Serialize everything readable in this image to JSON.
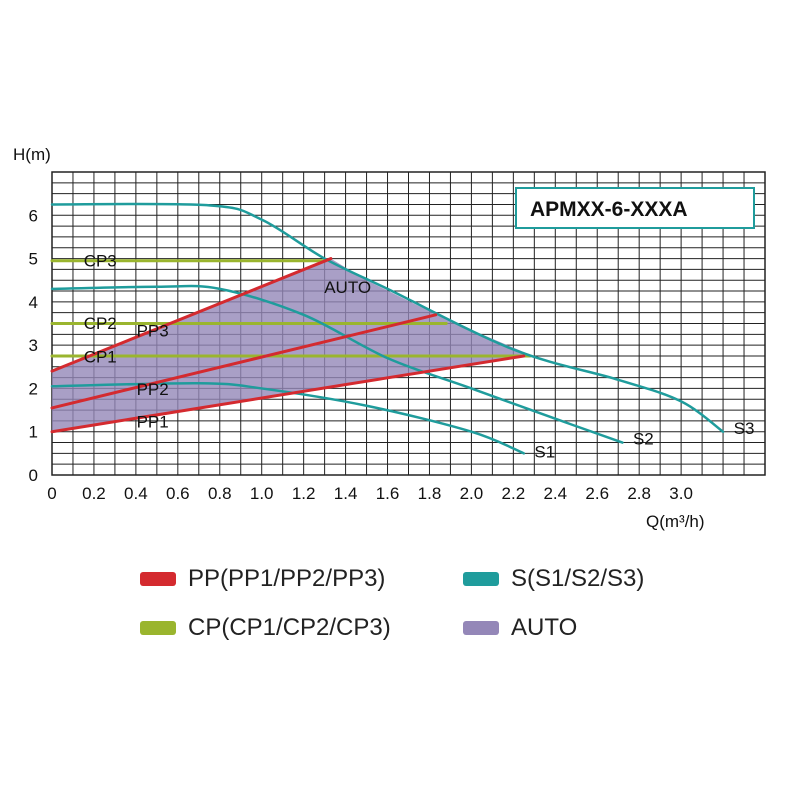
{
  "chart_data": {
    "type": "line",
    "model": "APMXX-6-XXXA",
    "ylabel": "H(m)",
    "xlabel": "Q(m³/h)",
    "xlim": [
      0,
      3.4
    ],
    "ylim": [
      0,
      7
    ],
    "x_ticks": [
      "0",
      "0.2",
      "0.4",
      "0.6",
      "0.8",
      "1.0",
      "1.2",
      "1.4",
      "1.6",
      "1.8",
      "2.0",
      "2.2",
      "2.4",
      "2.6",
      "2.8",
      "3.0"
    ],
    "x_tick_values": [
      0,
      0.2,
      0.4,
      0.6,
      0.8,
      1.0,
      1.2,
      1.4,
      1.6,
      1.8,
      2.0,
      2.2,
      2.4,
      2.6,
      2.8,
      3.0
    ],
    "y_ticks": [
      "0",
      "1",
      "2",
      "3",
      "4",
      "5",
      "6"
    ],
    "y_tick_values": [
      0,
      1,
      2,
      3,
      4,
      5,
      6
    ],
    "grid": true,
    "series": [
      {
        "name": "S1",
        "group": "S",
        "points": [
          [
            0,
            2.05
          ],
          [
            0.7,
            2.12
          ],
          [
            1.0,
            2.0
          ],
          [
            1.5,
            1.6
          ],
          [
            2.0,
            1.0
          ],
          [
            2.25,
            0.5
          ]
        ]
      },
      {
        "name": "S2",
        "group": "S",
        "points": [
          [
            0,
            4.3
          ],
          [
            0.5,
            4.35
          ],
          [
            0.8,
            4.3
          ],
          [
            1.2,
            3.7
          ],
          [
            1.6,
            2.7
          ],
          [
            2.0,
            2.0
          ],
          [
            2.4,
            1.3
          ],
          [
            2.72,
            0.75
          ]
        ]
      },
      {
        "name": "S3",
        "group": "S",
        "points": [
          [
            0,
            6.25
          ],
          [
            0.75,
            6.23
          ],
          [
            1.0,
            5.9
          ],
          [
            1.3,
            5.0
          ],
          [
            1.6,
            4.3
          ],
          [
            2.2,
            2.9
          ],
          [
            2.7,
            2.2
          ],
          [
            3.0,
            1.7
          ],
          [
            3.2,
            1.0
          ]
        ]
      },
      {
        "name": "PP1",
        "group": "PP",
        "points": [
          [
            0,
            1.0
          ],
          [
            2.25,
            2.75
          ]
        ]
      },
      {
        "name": "PP2",
        "group": "PP",
        "points": [
          [
            0,
            1.55
          ],
          [
            1.83,
            3.7
          ]
        ]
      },
      {
        "name": "PP3",
        "group": "PP",
        "points": [
          [
            0,
            2.4
          ],
          [
            1.33,
            5.0
          ]
        ]
      },
      {
        "name": "CP1",
        "group": "CP",
        "points": [
          [
            0,
            2.75
          ],
          [
            2.28,
            2.75
          ]
        ]
      },
      {
        "name": "CP2",
        "group": "CP",
        "points": [
          [
            0,
            3.5
          ],
          [
            1.88,
            3.5
          ]
        ]
      },
      {
        "name": "CP3",
        "group": "CP",
        "points": [
          [
            0,
            4.95
          ],
          [
            1.3,
            4.95
          ]
        ]
      }
    ],
    "auto_region": {
      "name": "AUTO",
      "points": [
        [
          0,
          1.0
        ],
        [
          0,
          2.4
        ],
        [
          1.33,
          5.0
        ],
        [
          1.5,
          4.5
        ],
        [
          1.75,
          3.9
        ],
        [
          2.0,
          3.35
        ],
        [
          2.28,
          2.78
        ],
        [
          2.25,
          2.75
        ]
      ]
    },
    "curve_labels": [
      {
        "text": "CP3",
        "at": [
          0.23,
          4.82
        ]
      },
      {
        "text": "CP2",
        "at": [
          0.23,
          3.37
        ]
      },
      {
        "text": "PP3",
        "at": [
          0.48,
          3.2
        ]
      },
      {
        "text": "CP1",
        "at": [
          0.23,
          2.6
        ]
      },
      {
        "text": "PP2",
        "at": [
          0.48,
          1.85
        ]
      },
      {
        "text": "PP1",
        "at": [
          0.48,
          1.1
        ]
      },
      {
        "text": "AUTO",
        "at": [
          1.41,
          4.2
        ]
      },
      {
        "text": "S1",
        "at": [
          2.35,
          0.4
        ]
      },
      {
        "text": "S2",
        "at": [
          2.82,
          0.7
        ]
      },
      {
        "text": "S3",
        "at": [
          3.3,
          0.95
        ]
      }
    ],
    "legend": [
      {
        "label": "PP(PP1/PP2/PP3)",
        "color": "#d42a2f"
      },
      {
        "label": "S(S1/S2/S3)",
        "color": "#1f9c9c"
      },
      {
        "label": "CP(CP1/CP2/CP3)",
        "color": "#9ab52e"
      },
      {
        "label": "AUTO",
        "color": "#9487b8"
      }
    ],
    "colors": {
      "PP": "#d42a2f",
      "S": "#1f9c9c",
      "CP": "#9ab52e",
      "AUTO": "#9487b8",
      "grid": "#222222",
      "box_border": "#1f9c9c"
    }
  }
}
